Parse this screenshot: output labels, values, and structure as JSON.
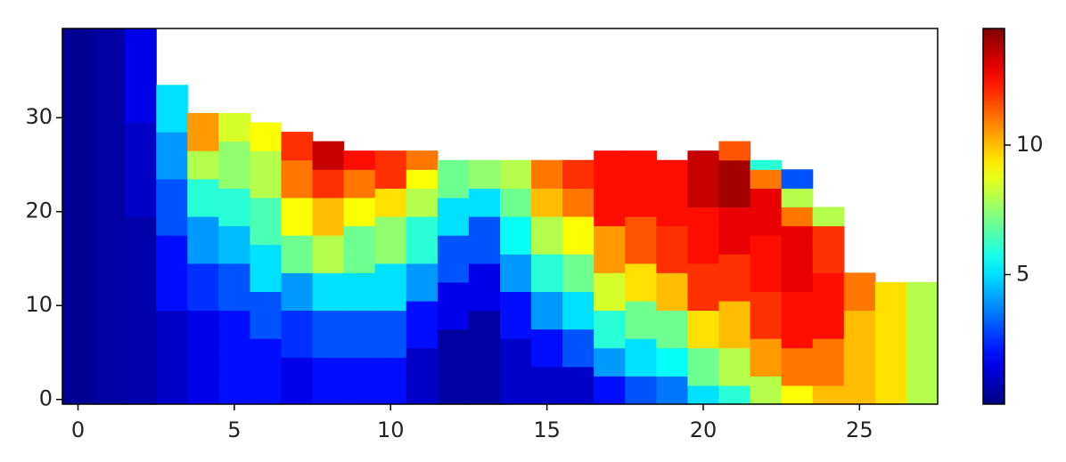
{
  "chart_data": {
    "type": "heatmap",
    "colormap": "jet",
    "xlim": [
      -0.5,
      27.5
    ],
    "ylim": [
      -0.5,
      39.5
    ],
    "xticks": [
      0,
      5,
      10,
      15,
      20,
      25
    ],
    "yticks": [
      0,
      10,
      20,
      30
    ],
    "clim": [
      0,
      14.5
    ],
    "cticks": [
      5,
      10
    ],
    "columns": [
      [
        0.3,
        0.3,
        0.3,
        0.3,
        0.3,
        0.3,
        0.3,
        0.3,
        0.3,
        0.3,
        0.3,
        0.3,
        0.3,
        0.3,
        0.3,
        0.3,
        0.3,
        0.3,
        0.3,
        0.3,
        0.3,
        0.3,
        0.3,
        0.3,
        0.3,
        0.3,
        0.3,
        0.3,
        0.3,
        0.3,
        0.3,
        0.3,
        0.3,
        0.3,
        0.3,
        0.3,
        0.3,
        0.3,
        0.3,
        0.3
      ],
      [
        0.5,
        0.5,
        0.5,
        0.5,
        0.5,
        0.5,
        0.5,
        0.5,
        0.5,
        0.5,
        0.5,
        0.5,
        0.5,
        0.5,
        0.5,
        0.5,
        0.5,
        0.5,
        0.5,
        0.5,
        0.5,
        0.5,
        0.5,
        0.5,
        0.5,
        0.5,
        0.5,
        0.5,
        0.5,
        0.5,
        0.5,
        0.5,
        0.5,
        0.5,
        0.5,
        0.5,
        0.5,
        0.5,
        0.5,
        0.5
      ],
      [
        0.6,
        0.6,
        0.6,
        0.6,
        0.6,
        0.6,
        0.6,
        0.6,
        0.6,
        0.6,
        0.6,
        0.6,
        0.6,
        0.6,
        0.6,
        0.6,
        0.6,
        0.6,
        0.6,
        0.6,
        1,
        1,
        1,
        1,
        1,
        1,
        1,
        1,
        1,
        1,
        1.5,
        1.5,
        1.5,
        1.5,
        1.5,
        1.5,
        1.5,
        1.5,
        1.5,
        1.5
      ],
      [
        1,
        1,
        1,
        1,
        1,
        1,
        1,
        1,
        1,
        1,
        2,
        2,
        2,
        2,
        2,
        2,
        2,
        2,
        3,
        3,
        3,
        3,
        3,
        3,
        4,
        4,
        4,
        4,
        4,
        5,
        5,
        5,
        5,
        5
      ],
      [
        1.5,
        1.5,
        1.5,
        1.5,
        1.5,
        1.5,
        1.5,
        1.5,
        1.5,
        1.5,
        2.5,
        2.5,
        2.5,
        2.5,
        2.5,
        4,
        4,
        4,
        4,
        4,
        6,
        6,
        6,
        6,
        8,
        8,
        8,
        10.5,
        10.5,
        10.5,
        10.5
      ],
      [
        2,
        2,
        2,
        2,
        2,
        2,
        2,
        2,
        2,
        2,
        3,
        3,
        3,
        3,
        3,
        4.5,
        4.5,
        4.5,
        4.5,
        6,
        6,
        6,
        6,
        7.5,
        7.5,
        7.5,
        7.5,
        7.5,
        8.5,
        8.5,
        8.5
      ],
      [
        2,
        2,
        2,
        2,
        2,
        2,
        2,
        3,
        3,
        3,
        3,
        3,
        5,
        5,
        5,
        5,
        5,
        6.5,
        6.5,
        6.5,
        6.5,
        6.5,
        8,
        8,
        8,
        8,
        8,
        9,
        9,
        9
      ],
      [
        1.5,
        1.5,
        1.5,
        1.5,
        1.5,
        2.5,
        2.5,
        2.5,
        2.5,
        2.5,
        4,
        4,
        4,
        4,
        7,
        7,
        7,
        7,
        9,
        9,
        9,
        9,
        11,
        11,
        11,
        11,
        12,
        12,
        12
      ],
      [
        2,
        2,
        2,
        2,
        2,
        3,
        3,
        3,
        3,
        3,
        5,
        5,
        5,
        5,
        8,
        8,
        8,
        8,
        10,
        10,
        10,
        10,
        12,
        12,
        12,
        13.5,
        13.5,
        13.5
      ],
      [
        2,
        2,
        2,
        2,
        2,
        3,
        3,
        3,
        3,
        3,
        5,
        5,
        5,
        5,
        7,
        7,
        7,
        7,
        7,
        9,
        9,
        9,
        11,
        11,
        11,
        12.5,
        12.5
      ],
      [
        2,
        2,
        2,
        2,
        2,
        3,
        3,
        3,
        3,
        3,
        5,
        5,
        5,
        5,
        5,
        7.5,
        7.5,
        7.5,
        7.5,
        7.5,
        9.5,
        9.5,
        9.5,
        12,
        12,
        12,
        12
      ],
      [
        1,
        1,
        1,
        1,
        1,
        1,
        2,
        2,
        2,
        2,
        2,
        4,
        4,
        4,
        4,
        6,
        6,
        6,
        6,
        6,
        8,
        8,
        8,
        9,
        9,
        11,
        11
      ],
      [
        0.5,
        0.5,
        0.5,
        0.5,
        0.5,
        0.5,
        0.5,
        0.5,
        1.5,
        1.5,
        1.5,
        1.5,
        1.5,
        3,
        3,
        3,
        3,
        3,
        5,
        5,
        5,
        5,
        7,
        7,
        7,
        7
      ],
      [
        0.5,
        0.5,
        0.5,
        0.5,
        0.5,
        0.5,
        0.5,
        0.5,
        0.5,
        0.5,
        1.5,
        1.5,
        1.5,
        1.5,
        1.5,
        3,
        3,
        3,
        3,
        3,
        5,
        5,
        5,
        7.5,
        7.5,
        7.5
      ],
      [
        1,
        1,
        1,
        1,
        1,
        1,
        1,
        2,
        2,
        2,
        2,
        2,
        4,
        4,
        4,
        4,
        5.5,
        5.5,
        5.5,
        5.5,
        7,
        7,
        7,
        8,
        8,
        8
      ],
      [
        1,
        1,
        1,
        1,
        2,
        2,
        2,
        2,
        4,
        4,
        4,
        4,
        6,
        6,
        6,
        6,
        8,
        8,
        8,
        8,
        10,
        10,
        10,
        11,
        11,
        11
      ],
      [
        1,
        1,
        1,
        1,
        3,
        3,
        3,
        3,
        5,
        5,
        5,
        5,
        7,
        7,
        7,
        7,
        9,
        9,
        9,
        9,
        11,
        11,
        11,
        12,
        12,
        12
      ],
      [
        2,
        2,
        2,
        4,
        4,
        4,
        6,
        6,
        6,
        6,
        8.5,
        8.5,
        8.5,
        8.5,
        10.5,
        10.5,
        10.5,
        10.5,
        10.5,
        12.5,
        12.5,
        12.5,
        12.5,
        12.5,
        12.5,
        12.5,
        12.5
      ],
      [
        3,
        3,
        3,
        5,
        5,
        5,
        5,
        7,
        7,
        7,
        7,
        9.5,
        9.5,
        9.5,
        9.5,
        11.5,
        11.5,
        11.5,
        11.5,
        11.5,
        12.5,
        12.5,
        12.5,
        12.5,
        12.5,
        12.5,
        12.5
      ],
      [
        3.5,
        3.5,
        3.5,
        5.5,
        5.5,
        5.5,
        7,
        7,
        7,
        7,
        10,
        10,
        10,
        10,
        12,
        12,
        12,
        12,
        12,
        12.5,
        12.5,
        12.5,
        12.5,
        12.5,
        12.5,
        12.5
      ],
      [
        5,
        5,
        7,
        7,
        7,
        7,
        9.5,
        9.5,
        9.5,
        9.5,
        12,
        12,
        12,
        12,
        12,
        12.5,
        12.5,
        12.5,
        12.5,
        12.5,
        12.5,
        13.5,
        13.5,
        13.5,
        13.5,
        13.5,
        13.5
      ],
      [
        6,
        6,
        8,
        8,
        8,
        8,
        10,
        10,
        10,
        10,
        10,
        12,
        12,
        12,
        12,
        12,
        13,
        13,
        13,
        13,
        13,
        14,
        14,
        14,
        14,
        14,
        11.5,
        11.5
      ],
      [
        8,
        8,
        8,
        10.5,
        10.5,
        10.5,
        10.5,
        12,
        12,
        12,
        12,
        12,
        12.5,
        12.5,
        12.5,
        12.5,
        12.5,
        12.5,
        13,
        13,
        13,
        13,
        13,
        11,
        11,
        6
      ],
      [
        9,
        9,
        11,
        11,
        11,
        11,
        12.5,
        12.5,
        12.5,
        12.5,
        12.5,
        12.5,
        13,
        13,
        13,
        13,
        13,
        13,
        13,
        11,
        11,
        8,
        8,
        3,
        3
      ],
      [
        10,
        10,
        11,
        11,
        11,
        11,
        11,
        12.5,
        12.5,
        12.5,
        12.5,
        12.5,
        12.5,
        12.5,
        12,
        12,
        12,
        12,
        12,
        8,
        8
      ],
      [
        10,
        10,
        10,
        10,
        10,
        10,
        10,
        10,
        10,
        10,
        11,
        11,
        11,
        11
      ],
      [
        9.5,
        9.5,
        9.5,
        9.5,
        9.5,
        9.5,
        9.5,
        9.5,
        9.5,
        9.5,
        9.5,
        9.5,
        9.5
      ],
      [
        8,
        8,
        8,
        8,
        8,
        8,
        8,
        8,
        8,
        8,
        8,
        8,
        8
      ]
    ]
  }
}
